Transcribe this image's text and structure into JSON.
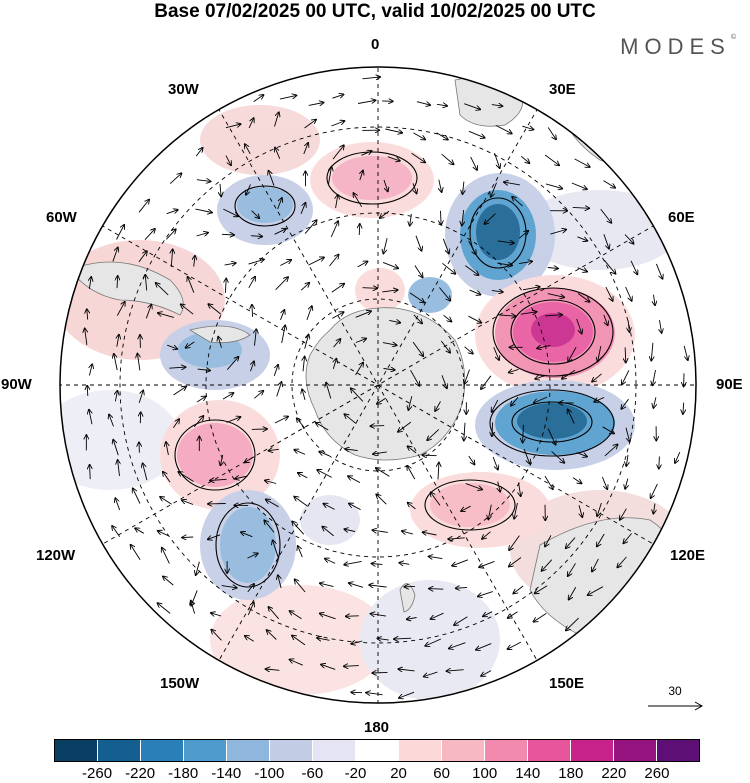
{
  "title": "Base 07/02/2025 00 UTC, valid 10/02/2025 00 UTC",
  "brand": "MODES",
  "brand_mark": "©",
  "longitude_labels": {
    "top": "0",
    "upper_left": "30W",
    "upper_right": "30E",
    "mid_left_upper": "60W",
    "mid_right_upper": "60E",
    "left": "90W",
    "right": "90E",
    "mid_left_lower": "120W",
    "mid_right_lower": "120E",
    "lower_left": "150W",
    "lower_right": "150E",
    "bottom": "180"
  },
  "reference_vector": "30",
  "colorbar": {
    "colors": [
      "#0a3f63",
      "#145f90",
      "#2a7fb8",
      "#4f9bcd",
      "#8fb6dc",
      "#c2cce5",
      "#e4e4f2",
      "#ffffff",
      "#fbd9d9",
      "#f7b7c3",
      "#f18aae",
      "#e7559c",
      "#c72289",
      "#95137f",
      "#5e0f76"
    ],
    "ticks": [
      "-260",
      "-220",
      "-180",
      "-140",
      "-100",
      "-60",
      "-20",
      "20",
      "60",
      "100",
      "140",
      "180",
      "220",
      "260"
    ]
  }
}
